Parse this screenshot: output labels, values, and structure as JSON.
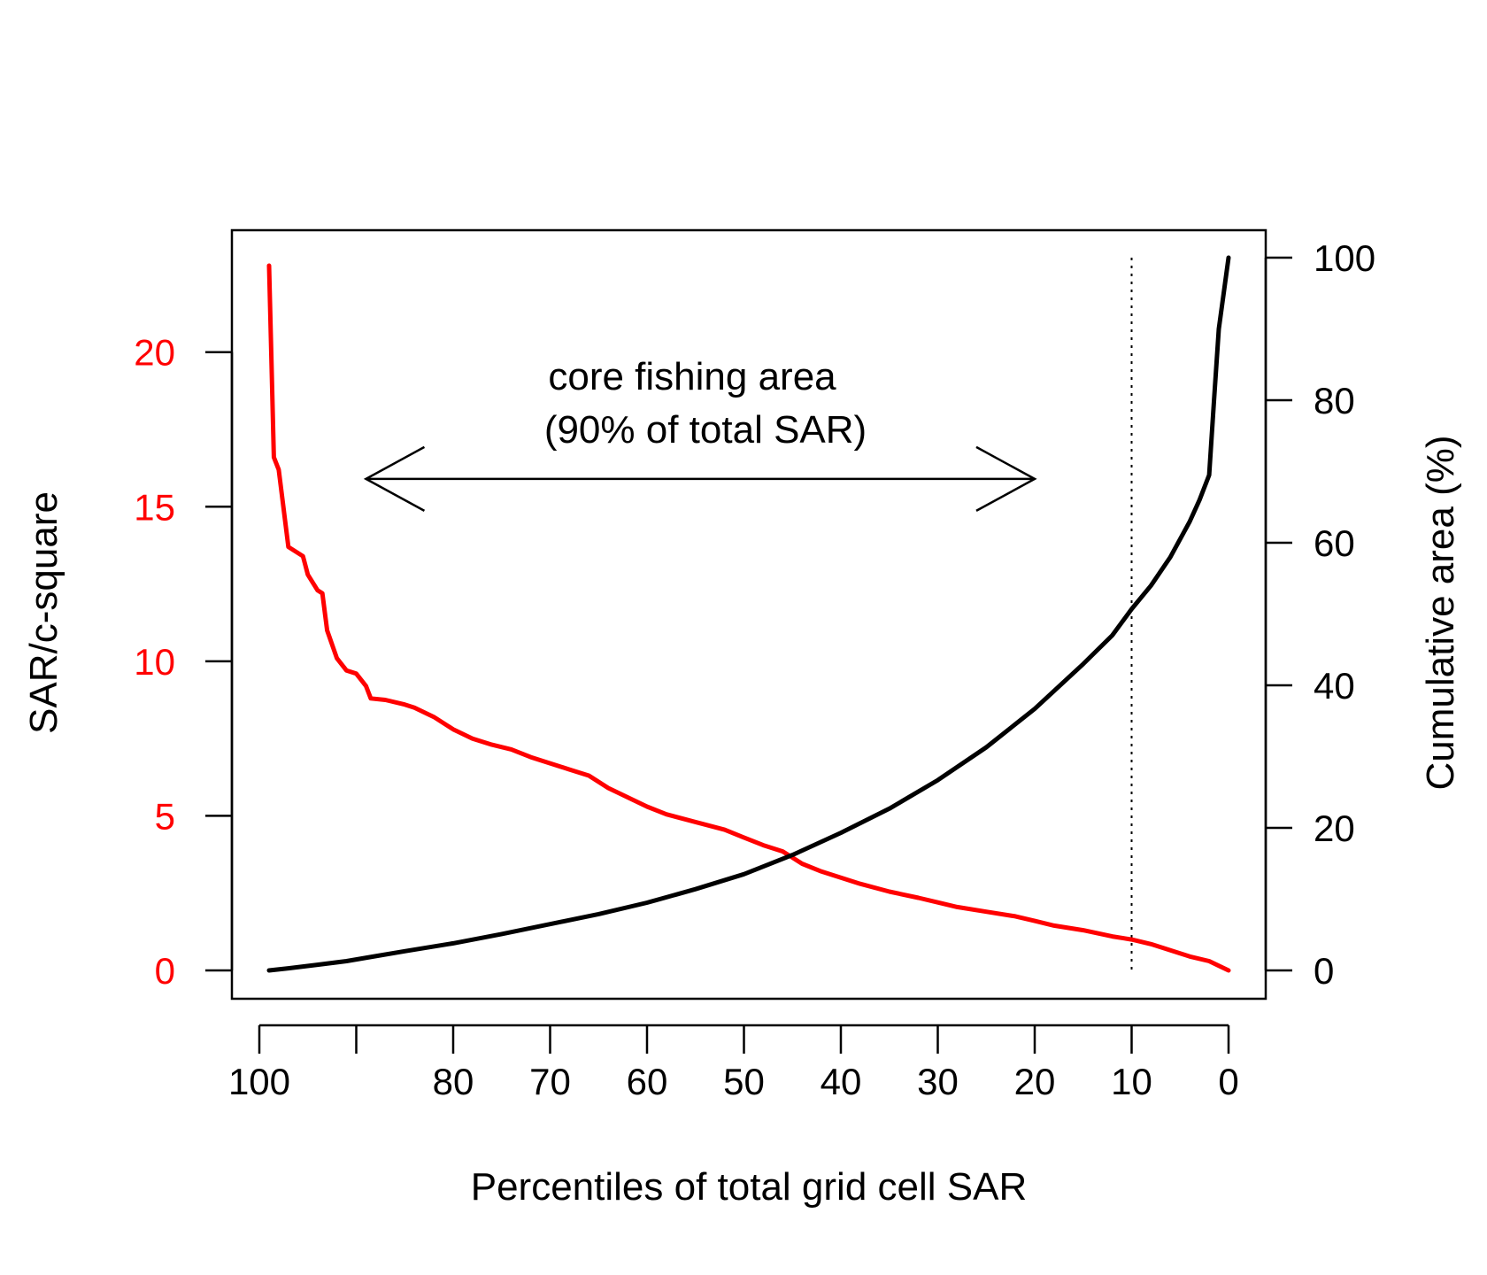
{
  "chart_data": {
    "type": "line",
    "title": "",
    "xlabel": "Percentiles of total grid cell SAR",
    "ylabel_left": "SAR/c-square",
    "ylabel_right": "Cumulative area (%)",
    "xlim": [
      100,
      0
    ],
    "ylim_left": [
      0,
      23
    ],
    "ylim_right": [
      0,
      100
    ],
    "x_ticks": [
      100,
      90,
      80,
      70,
      60,
      50,
      40,
      30,
      20,
      10,
      0
    ],
    "x_tick_labels": [
      "100",
      "",
      "80",
      "70",
      "60",
      "50",
      "40",
      "30",
      "20",
      "10",
      "0"
    ],
    "y_left_ticks": [
      0,
      5,
      10,
      15,
      20
    ],
    "y_left_tick_labels": [
      "0",
      "5",
      "10",
      "15",
      "20"
    ],
    "y_right_ticks": [
      0,
      20,
      40,
      60,
      80,
      100
    ],
    "y_right_tick_labels": [
      "0",
      "20",
      "40",
      "60",
      "80",
      "100"
    ],
    "grid": false,
    "legend": "none",
    "colors": {
      "sar": "#ff0000",
      "cumulative": "#000000",
      "axis": "#000000",
      "left_axis_labels": "#ff0000"
    },
    "series": [
      {
        "axis": "left",
        "color": "#ff0000",
        "points": [
          [
            99,
            22.8
          ],
          [
            98.5,
            16.6
          ],
          [
            98,
            16.2
          ],
          [
            97,
            13.7
          ],
          [
            96,
            13.5
          ],
          [
            95.5,
            13.4
          ],
          [
            95,
            12.8
          ],
          [
            94,
            12.3
          ],
          [
            93.5,
            12.2
          ],
          [
            93,
            11
          ],
          [
            92,
            10.1
          ],
          [
            91,
            9.7
          ],
          [
            90,
            9.6
          ],
          [
            89,
            9.2
          ],
          [
            88.5,
            8.8
          ],
          [
            87,
            8.75
          ],
          [
            85,
            8.6
          ],
          [
            84,
            8.5
          ],
          [
            82,
            8.2
          ],
          [
            80,
            7.8
          ],
          [
            78,
            7.5
          ],
          [
            76,
            7.3
          ],
          [
            74,
            7.15
          ],
          [
            72,
            6.9
          ],
          [
            70,
            6.7
          ],
          [
            68,
            6.5
          ],
          [
            66,
            6.3
          ],
          [
            64,
            5.9
          ],
          [
            62,
            5.6
          ],
          [
            60,
            5.3
          ],
          [
            58,
            5.05
          ],
          [
            55,
            4.8
          ],
          [
            52,
            4.55
          ],
          [
            50,
            4.3
          ],
          [
            48,
            4.05
          ],
          [
            46,
            3.85
          ],
          [
            44,
            3.45
          ],
          [
            42,
            3.2
          ],
          [
            40,
            3.0
          ],
          [
            38,
            2.8
          ],
          [
            35,
            2.55
          ],
          [
            32,
            2.35
          ],
          [
            30,
            2.2
          ],
          [
            28,
            2.05
          ],
          [
            25,
            1.9
          ],
          [
            22,
            1.75
          ],
          [
            20,
            1.6
          ],
          [
            18,
            1.45
          ],
          [
            15,
            1.3
          ],
          [
            12,
            1.1
          ],
          [
            10,
            1.0
          ],
          [
            8,
            0.85
          ],
          [
            6,
            0.65
          ],
          [
            4,
            0.45
          ],
          [
            2,
            0.3
          ],
          [
            1,
            0.15
          ],
          [
            0,
            0.0
          ]
        ]
      },
      {
        "axis": "right",
        "color": "#000000",
        "points": [
          [
            99,
            0.0
          ],
          [
            97,
            0.3
          ],
          [
            94,
            0.8
          ],
          [
            91,
            1.3
          ],
          [
            88,
            2.0
          ],
          [
            85,
            2.7
          ],
          [
            80,
            3.8
          ],
          [
            75,
            5.1
          ],
          [
            70,
            6.5
          ],
          [
            65,
            7.9
          ],
          [
            60,
            9.5
          ],
          [
            55,
            11.4
          ],
          [
            50,
            13.5
          ],
          [
            45,
            16.2
          ],
          [
            40,
            19.3
          ],
          [
            35,
            22.7
          ],
          [
            30,
            26.7
          ],
          [
            25,
            31.3
          ],
          [
            20,
            36.7
          ],
          [
            15,
            43.0
          ],
          [
            12,
            47.0
          ],
          [
            10,
            50.7
          ],
          [
            8,
            54.0
          ],
          [
            6,
            58.0
          ],
          [
            4,
            63.0
          ],
          [
            3,
            66.0
          ],
          [
            2,
            69.5
          ],
          [
            1.5,
            80.0
          ],
          [
            1,
            90.0
          ],
          [
            0,
            100.0
          ]
        ]
      }
    ],
    "reference_line": {
      "x": 10,
      "style": "dotted",
      "from_right": 0,
      "to_right": 100
    },
    "annotation": {
      "line1": "core fishing area",
      "line2": "(90% of total SAR)",
      "arrow_from_x": 89,
      "arrow_to_x": 20,
      "arrow_at_left": 15.9
    }
  }
}
